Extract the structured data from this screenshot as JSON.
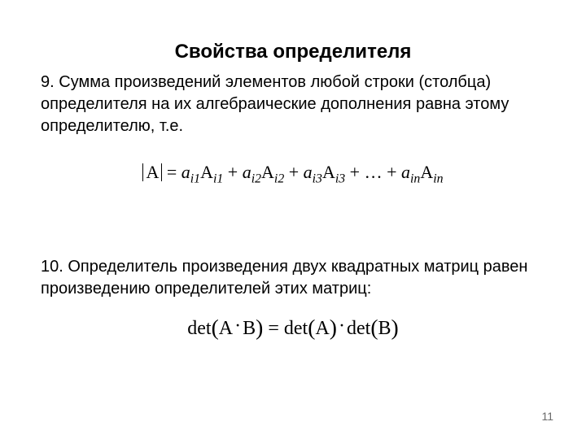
{
  "page": {
    "number": "11",
    "title": "Свойства определителя",
    "title_fontsize": 24,
    "title_fontweight": "bold",
    "body_fontsize": 20,
    "background_color": "#ffffff",
    "text_color": "#000000",
    "pagenum_color": "#6b6b6b"
  },
  "property9": {
    "prefix": "9.   ",
    "text": "Сумма произведений элементов любой строки (столбца) определителя на их алгебраические дополнения равна этому определителю, т.е.",
    "formula": {
      "fontfamily": "Times New Roman",
      "fontsize": 22,
      "lhs_symbol": "A",
      "eq": "=",
      "terms": [
        {
          "a_sub": "i1",
          "A_sub": "i1"
        },
        {
          "a_sub": "i2",
          "A_sub": "i2"
        },
        {
          "a_sub": "i3",
          "A_sub": "i3"
        }
      ],
      "dots": "…",
      "last_term": {
        "a_sub": "in",
        "A_sub": "in"
      },
      "plus": "+"
    }
  },
  "property10": {
    "prefix": "10. ",
    "text": "Определитель произведения двух квадратных матриц равен произведению определителей этих матриц:",
    "formula": {
      "fontfamily": "Times New Roman",
      "fontsize": 24,
      "det": "det",
      "A": "A",
      "B": "B",
      "eq": "=",
      "mult": "·"
    }
  }
}
